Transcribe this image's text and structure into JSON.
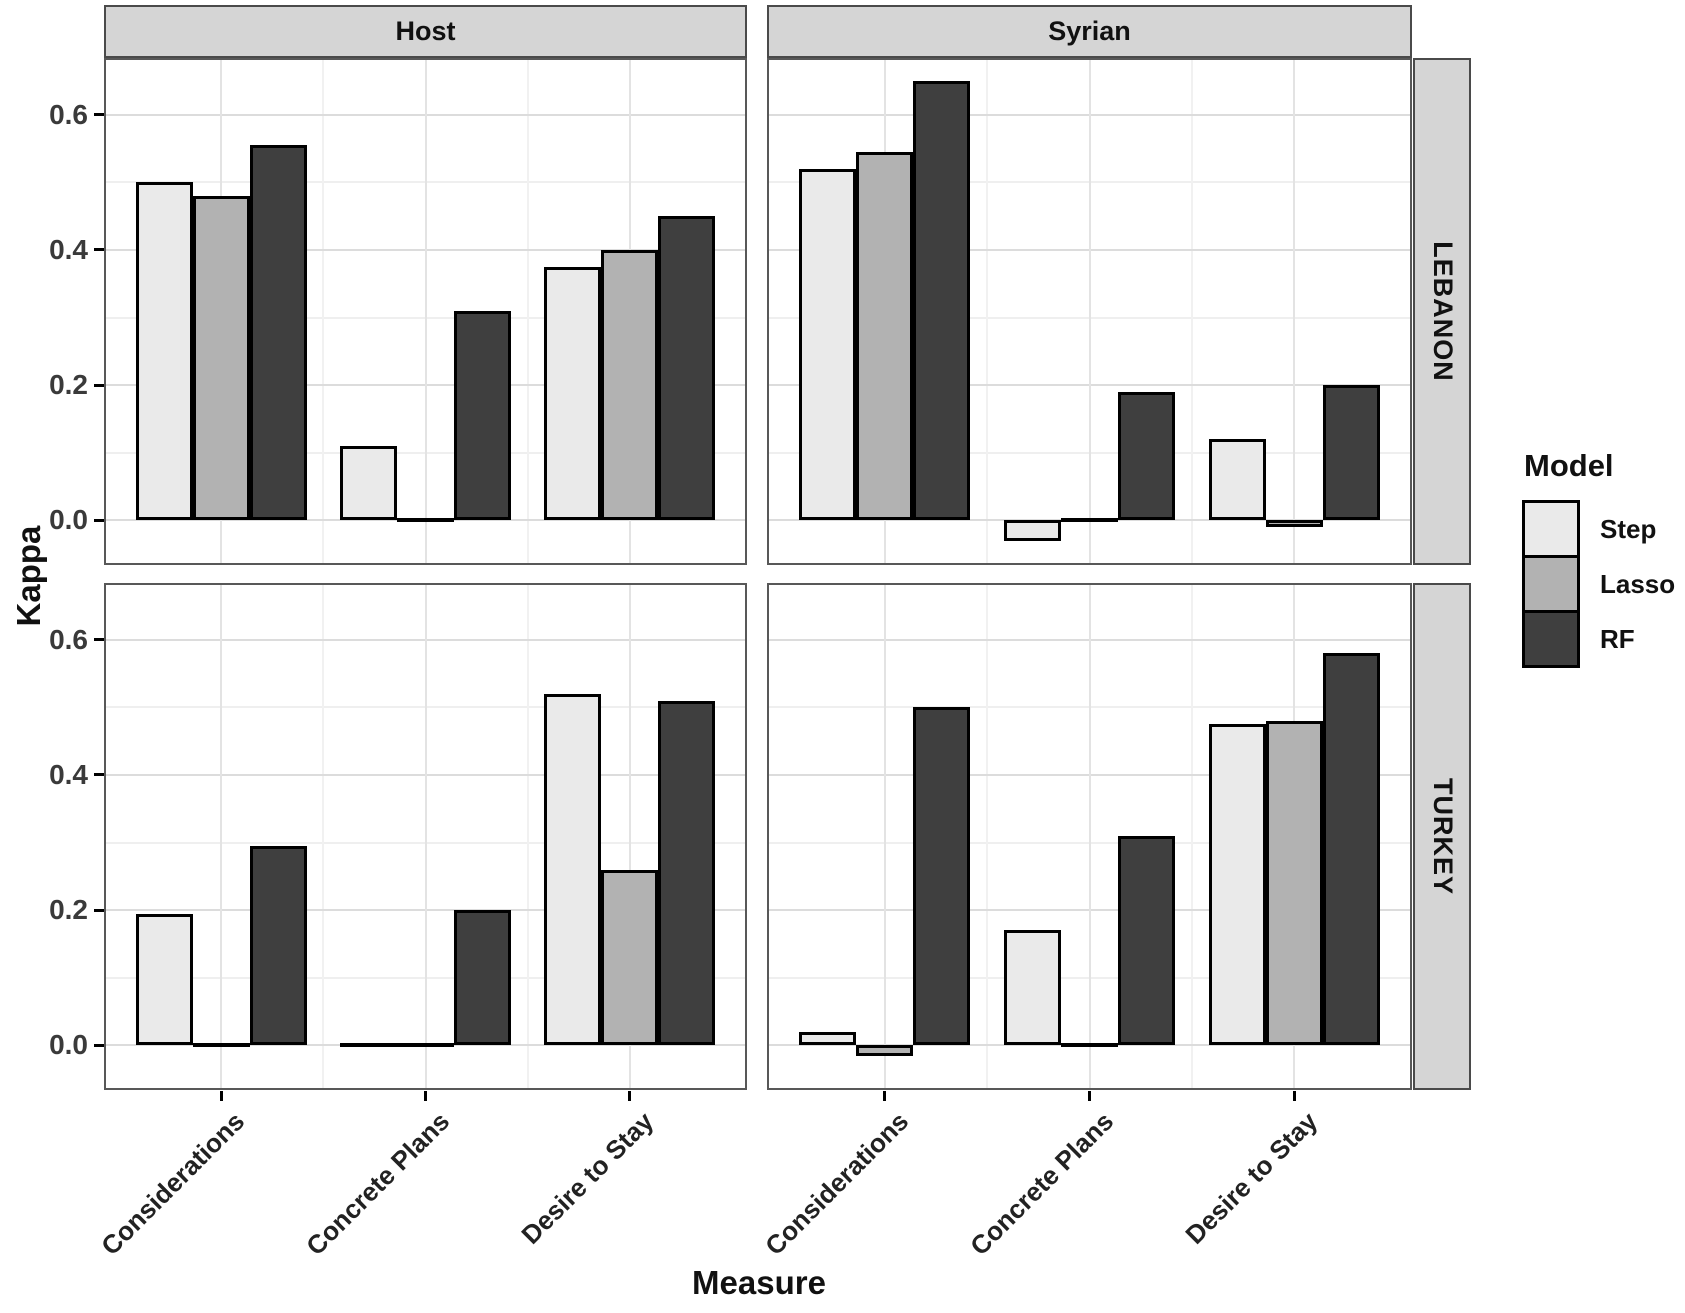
{
  "figure": {
    "y_axis_title": "Kappa",
    "x_axis_title": "Measure",
    "y_tick_labels": [
      "0.6",
      "0.4",
      "0.2",
      "0.0"
    ]
  },
  "legend": {
    "title": "Model",
    "entries": [
      {
        "label": "Step",
        "color": "#eaeaea"
      },
      {
        "label": "Lasso",
        "color": "#b2b2b2"
      },
      {
        "label": "RF",
        "color": "#3f3f3f"
      }
    ]
  },
  "chart_data": {
    "type": "bar",
    "title": "",
    "xlabel": "Measure",
    "ylabel": "Kappa",
    "categories": [
      "Considerations",
      "Concrete Plans",
      "Desire to Stay"
    ],
    "ylim": [
      -0.066,
      0.684
    ],
    "y_major_ticks": [
      0.0,
      0.2,
      0.4,
      0.6
    ],
    "y_minor_ticks": [
      0.1,
      0.3,
      0.5
    ],
    "grid": true,
    "legend_position": "right",
    "bar_outline_color": "#000000",
    "series_colors": {
      "Step": "#eaeaea",
      "Lasso": "#b2b2b2",
      "RF": "#3f3f3f"
    },
    "facets": {
      "columns": [
        "Host",
        "Syrian"
      ],
      "rows": [
        "LEBANON",
        "TURKEY"
      ]
    },
    "panels": [
      {
        "row": "LEBANON",
        "col": "Host",
        "series": [
          {
            "name": "Step",
            "values": [
              0.5,
              0.11,
              0.375
            ]
          },
          {
            "name": "Lasso",
            "values": [
              0.48,
              0.0,
              0.4
            ]
          },
          {
            "name": "RF",
            "values": [
              0.555,
              0.31,
              0.45
            ]
          }
        ]
      },
      {
        "row": "LEBANON",
        "col": "Syrian",
        "series": [
          {
            "name": "Step",
            "values": [
              0.52,
              -0.03,
              0.12
            ]
          },
          {
            "name": "Lasso",
            "values": [
              0.545,
              0.0,
              -0.01
            ]
          },
          {
            "name": "RF",
            "values": [
              0.65,
              0.19,
              0.2
            ]
          }
        ]
      },
      {
        "row": "TURKEY",
        "col": "Host",
        "series": [
          {
            "name": "Step",
            "values": [
              0.195,
              0.0,
              0.52
            ]
          },
          {
            "name": "Lasso",
            "values": [
              0.0,
              0.0,
              0.26
            ]
          },
          {
            "name": "RF",
            "values": [
              0.295,
              0.2,
              0.51
            ]
          }
        ]
      },
      {
        "row": "TURKEY",
        "col": "Syrian",
        "series": [
          {
            "name": "Step",
            "values": [
              0.02,
              0.17,
              0.475
            ]
          },
          {
            "name": "Lasso",
            "values": [
              -0.015,
              0.0,
              0.48
            ]
          },
          {
            "name": "RF",
            "values": [
              0.5,
              0.31,
              0.58
            ]
          }
        ]
      }
    ]
  }
}
